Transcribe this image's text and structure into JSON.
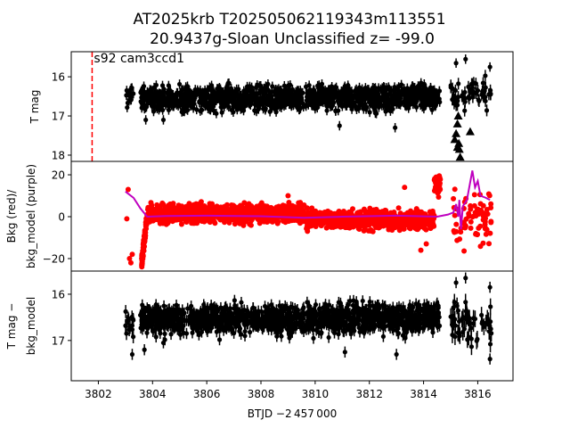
{
  "chart_data": {
    "type": "scatter",
    "title_line1": "AT2025krb  T202505062119343m113551",
    "title_line2": "20.9437g-Sloan Unclassified z= -99.0",
    "xlabel": "BTJD −2 457 000",
    "xlim": [
      3801.0,
      3817.3
    ],
    "xticks": [
      "3802",
      "3804",
      "3806",
      "3808",
      "3810",
      "3812",
      "3814",
      "3816"
    ],
    "colors": {
      "mag": "#000000",
      "bkg": "#ff0000",
      "bkg_model": "#bf00bf",
      "marker_line": "#ff0000"
    },
    "panels": [
      {
        "id": "tmag",
        "ylabel": [
          "T mag"
        ],
        "ylim": [
          18.16,
          15.36
        ],
        "yticks": [
          "16",
          "17",
          "18"
        ],
        "annotation": "s92 cam3ccd1",
        "vline_x": 3801.77,
        "segments": [
          {
            "x0": 3803.0,
            "x1": 3803.3,
            "n": 14,
            "lo": 15.95,
            "hi": 16.95,
            "err": 0.12
          },
          {
            "x0": 3803.55,
            "x1": 3809.6,
            "n": 700,
            "lo": 16.1,
            "hi": 17.0,
            "err": 0.12
          },
          {
            "x0": 3809.65,
            "x1": 3814.6,
            "n": 600,
            "lo": 16.05,
            "hi": 17.0,
            "err": 0.12
          },
          {
            "x0": 3815.0,
            "x1": 3816.5,
            "n": 55,
            "lo": 15.9,
            "hi": 17.0,
            "err": 0.15
          }
        ],
        "outliers": [
          [
            3803.75,
            17.1
          ],
          [
            3804.4,
            17.1
          ],
          [
            3810.9,
            17.25
          ],
          [
            3812.95,
            17.3
          ],
          [
            3815.2,
            15.65
          ],
          [
            3815.55,
            15.55
          ],
          [
            3816.45,
            15.75
          ]
        ],
        "upper_limits": [
          [
            3815.15,
            17.6
          ],
          [
            3815.2,
            17.45
          ],
          [
            3815.25,
            17.2
          ],
          [
            3815.28,
            17.0
          ],
          [
            3815.3,
            17.7
          ],
          [
            3815.32,
            17.85
          ],
          [
            3815.35,
            18.05
          ],
          [
            3815.25,
            17.8
          ],
          [
            3815.72,
            17.4
          ]
        ]
      },
      {
        "id": "bkg",
        "ylabel": [
          "Bkg (red)/",
          "bkg_model (purple)"
        ],
        "ylim": [
          -25.96,
          26.4
        ],
        "yticks": [
          "−20",
          "0",
          "20"
        ],
        "segments": [
          {
            "x0": 3803.6,
            "x1": 3803.8,
            "n": 80,
            "lo": -22,
            "hi": 0,
            "ramp": true
          },
          {
            "x0": 3803.8,
            "x1": 3809.6,
            "n": 900,
            "lo": -5,
            "hi": 8
          },
          {
            "x0": 3809.65,
            "x1": 3814.4,
            "n": 800,
            "lo": -8,
            "hi": 5
          },
          {
            "x0": 3814.4,
            "x1": 3814.62,
            "n": 60,
            "lo": 9,
            "hi": 21
          },
          {
            "x0": 3815.1,
            "x1": 3816.5,
            "n": 70,
            "lo": -22,
            "hi": 20
          }
        ],
        "outliers": [
          [
            3803.1,
            13
          ],
          [
            3803.05,
            -1
          ],
          [
            3803.15,
            -20
          ],
          [
            3803.2,
            -22
          ],
          [
            3803.25,
            -18
          ],
          [
            3813.9,
            -16
          ],
          [
            3814.1,
            -13
          ],
          [
            3809.0,
            10
          ],
          [
            3813.3,
            14
          ]
        ],
        "model": [
          [
            3803.0,
            12
          ],
          [
            3803.3,
            9
          ],
          [
            3803.55,
            4
          ],
          [
            3803.8,
            0
          ],
          [
            3804.5,
            0.3
          ],
          [
            3806,
            0.5
          ],
          [
            3808,
            0.2
          ],
          [
            3809.6,
            -0.5
          ],
          [
            3811,
            0
          ],
          [
            3813,
            0.5
          ],
          [
            3814.5,
            0
          ],
          [
            3814.9,
            1
          ],
          [
            3815.1,
            2
          ],
          [
            3815.2,
            6
          ],
          [
            3815.28,
            0
          ],
          [
            3815.32,
            8
          ],
          [
            3815.38,
            -6
          ],
          [
            3815.45,
            5
          ],
          [
            3815.6,
            8
          ],
          [
            3815.8,
            22
          ],
          [
            3815.9,
            14
          ],
          [
            3816.0,
            17
          ],
          [
            3816.1,
            10
          ],
          [
            3816.3,
            9
          ],
          [
            3816.45,
            8
          ]
        ]
      },
      {
        "id": "tmag_minus_bkg",
        "ylabel": [
          "T mag −",
          "bkg_model"
        ],
        "ylim": [
          17.87,
          15.5
        ],
        "yticks": [
          "16",
          "17"
        ],
        "segments": [
          {
            "x0": 3803.0,
            "x1": 3803.3,
            "n": 14,
            "lo": 16.2,
            "hi": 17.0,
            "err": 0.14
          },
          {
            "x0": 3803.55,
            "x1": 3809.6,
            "n": 700,
            "lo": 16.1,
            "hi": 17.0,
            "err": 0.12
          },
          {
            "x0": 3809.65,
            "x1": 3814.6,
            "n": 600,
            "lo": 16.05,
            "hi": 17.0,
            "err": 0.12
          },
          {
            "x0": 3815.0,
            "x1": 3816.5,
            "n": 55,
            "lo": 16.0,
            "hi": 17.3,
            "err": 0.18
          }
        ],
        "outliers": [
          [
            3803.25,
            17.3
          ],
          [
            3803.7,
            17.2
          ],
          [
            3804.4,
            17.05
          ],
          [
            3811.1,
            17.25
          ],
          [
            3813.0,
            17.3
          ],
          [
            3815.2,
            15.75
          ],
          [
            3815.55,
            15.65
          ],
          [
            3816.45,
            15.85
          ],
          [
            3816.45,
            17.4
          ]
        ]
      }
    ]
  }
}
